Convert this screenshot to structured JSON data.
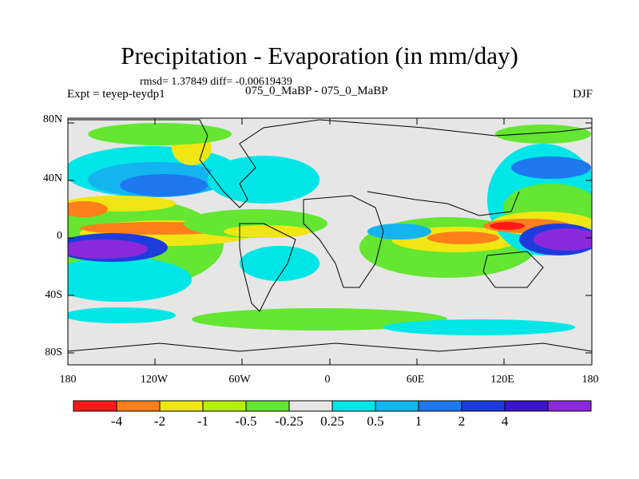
{
  "title": "Precipitation - Evaporation (in mm/day)",
  "stats": "rmsd= 1.37849 diff= -0.00619439",
  "experiment": "Expt = teyep-teydp1",
  "case": "075_0_MaBP - 075_0_MaBP",
  "season": "DJF",
  "lat_labels": [
    "80N",
    "40N",
    "0",
    "40S",
    "80S"
  ],
  "lon_labels": [
    "180",
    "120W",
    "60W",
    "0",
    "60E",
    "120E",
    "180"
  ],
  "colorbar": {
    "colors": [
      "#ff1a1a",
      "#ff7f1a",
      "#f0e614",
      "#b4f000",
      "#64e632",
      "#e6e6e6",
      "#00e6e6",
      "#14b4f0",
      "#1e78f0",
      "#1e3cdc",
      "#3c14c8",
      "#8c28dc"
    ],
    "labels": [
      "-4",
      "-2",
      "-1",
      "-0.5",
      "-0.25",
      "0.25",
      "0.5",
      "1",
      "2",
      "4"
    ]
  }
}
